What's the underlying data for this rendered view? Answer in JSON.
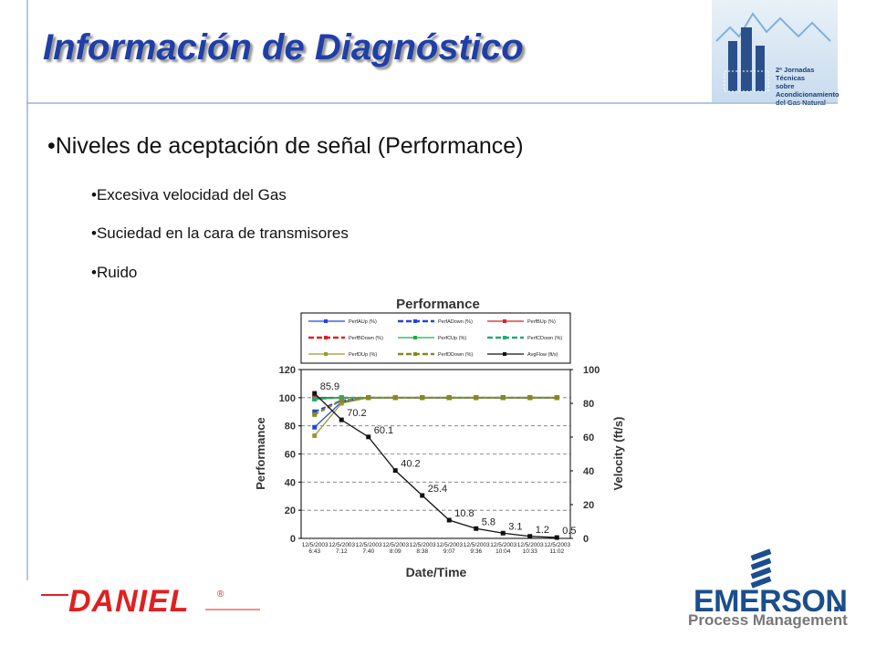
{
  "header": {
    "title": "Información de Diagnóstico",
    "event": [
      "2ª Jornadas Técnicas",
      "sobre Acondicionamiento",
      "del Gas Natural"
    ]
  },
  "bullets": {
    "main": "•Niveles de aceptación de señal (Performance)",
    "items": [
      "•Excesiva velocidad del Gas",
      "•Suciedad en la cara de transmisores",
      "•Ruido"
    ]
  },
  "footer": {
    "left_logo": "DANIEL",
    "left_mark": "®",
    "right_logo": "EMERSON",
    "right_logo_mark": ".",
    "right_sub": "Process Management"
  },
  "chart_data": {
    "type": "line",
    "title": "Performance",
    "xlabel": "Date/Time",
    "ylabel": "Performance",
    "y2label": "Velocity (ft/s)",
    "categories": [
      "12/5/2003 6:43",
      "12/5/2003 7:12",
      "12/5/2003 7:40",
      "12/5/2003 8:09",
      "12/5/2003 8:38",
      "12/5/2003 9:07",
      "12/5/2003 9:36",
      "12/5/2003 10:04",
      "12/5/2003 10:33",
      "12/5/2003 11:02"
    ],
    "ylim": [
      0,
      120
    ],
    "yticks": [
      0,
      20,
      40,
      60,
      80,
      100,
      120
    ],
    "y2lim": [
      0,
      100
    ],
    "y2ticks": [
      0,
      20,
      40,
      60,
      80,
      100
    ],
    "grid": true,
    "series": [
      {
        "name": "PerfAUp (%)",
        "color": "#2244dd",
        "dash": false,
        "values": [
          79,
          97,
          100,
          100,
          100,
          100,
          100,
          100,
          100,
          100
        ]
      },
      {
        "name": "PerfADown (%)",
        "color": "#2244dd",
        "dash": true,
        "values": [
          90,
          98,
          100,
          100,
          100,
          100,
          100,
          100,
          100,
          100
        ]
      },
      {
        "name": "PerfBUp (%)",
        "color": "#dd2222",
        "dash": false,
        "values": [
          100,
          100,
          100,
          100,
          100,
          100,
          100,
          100,
          100,
          100
        ]
      },
      {
        "name": "PerfBDown (%)",
        "color": "#dd2222",
        "dash": true,
        "values": [
          100,
          100,
          100,
          100,
          100,
          100,
          100,
          100,
          100,
          100
        ]
      },
      {
        "name": "PerfCUp (%)",
        "color": "#22aa44",
        "dash": false,
        "values": [
          99,
          100,
          100,
          100,
          100,
          100,
          100,
          100,
          100,
          100
        ]
      },
      {
        "name": "PerfCDown (%)",
        "color": "#22aa77",
        "dash": true,
        "values": [
          99,
          100,
          100,
          100,
          100,
          100,
          100,
          100,
          100,
          100
        ]
      },
      {
        "name": "PerfDUp (%)",
        "color": "#999933",
        "dash": false,
        "values": [
          73,
          96,
          100,
          100,
          100,
          100,
          100,
          100,
          100,
          100
        ]
      },
      {
        "name": "PerfDDown (%)",
        "color": "#888822",
        "dash": true,
        "values": [
          88,
          98,
          100,
          100,
          100,
          100,
          100,
          100,
          100,
          100
        ]
      },
      {
        "name": "AvgFlow (ft/s)",
        "color": "#111111",
        "dash": false,
        "axis": "y2",
        "labels": true,
        "values": [
          85.9,
          70.2,
          60.1,
          40.2,
          25.4,
          10.8,
          5.8,
          3.1,
          1.2,
          0.5
        ]
      }
    ]
  }
}
